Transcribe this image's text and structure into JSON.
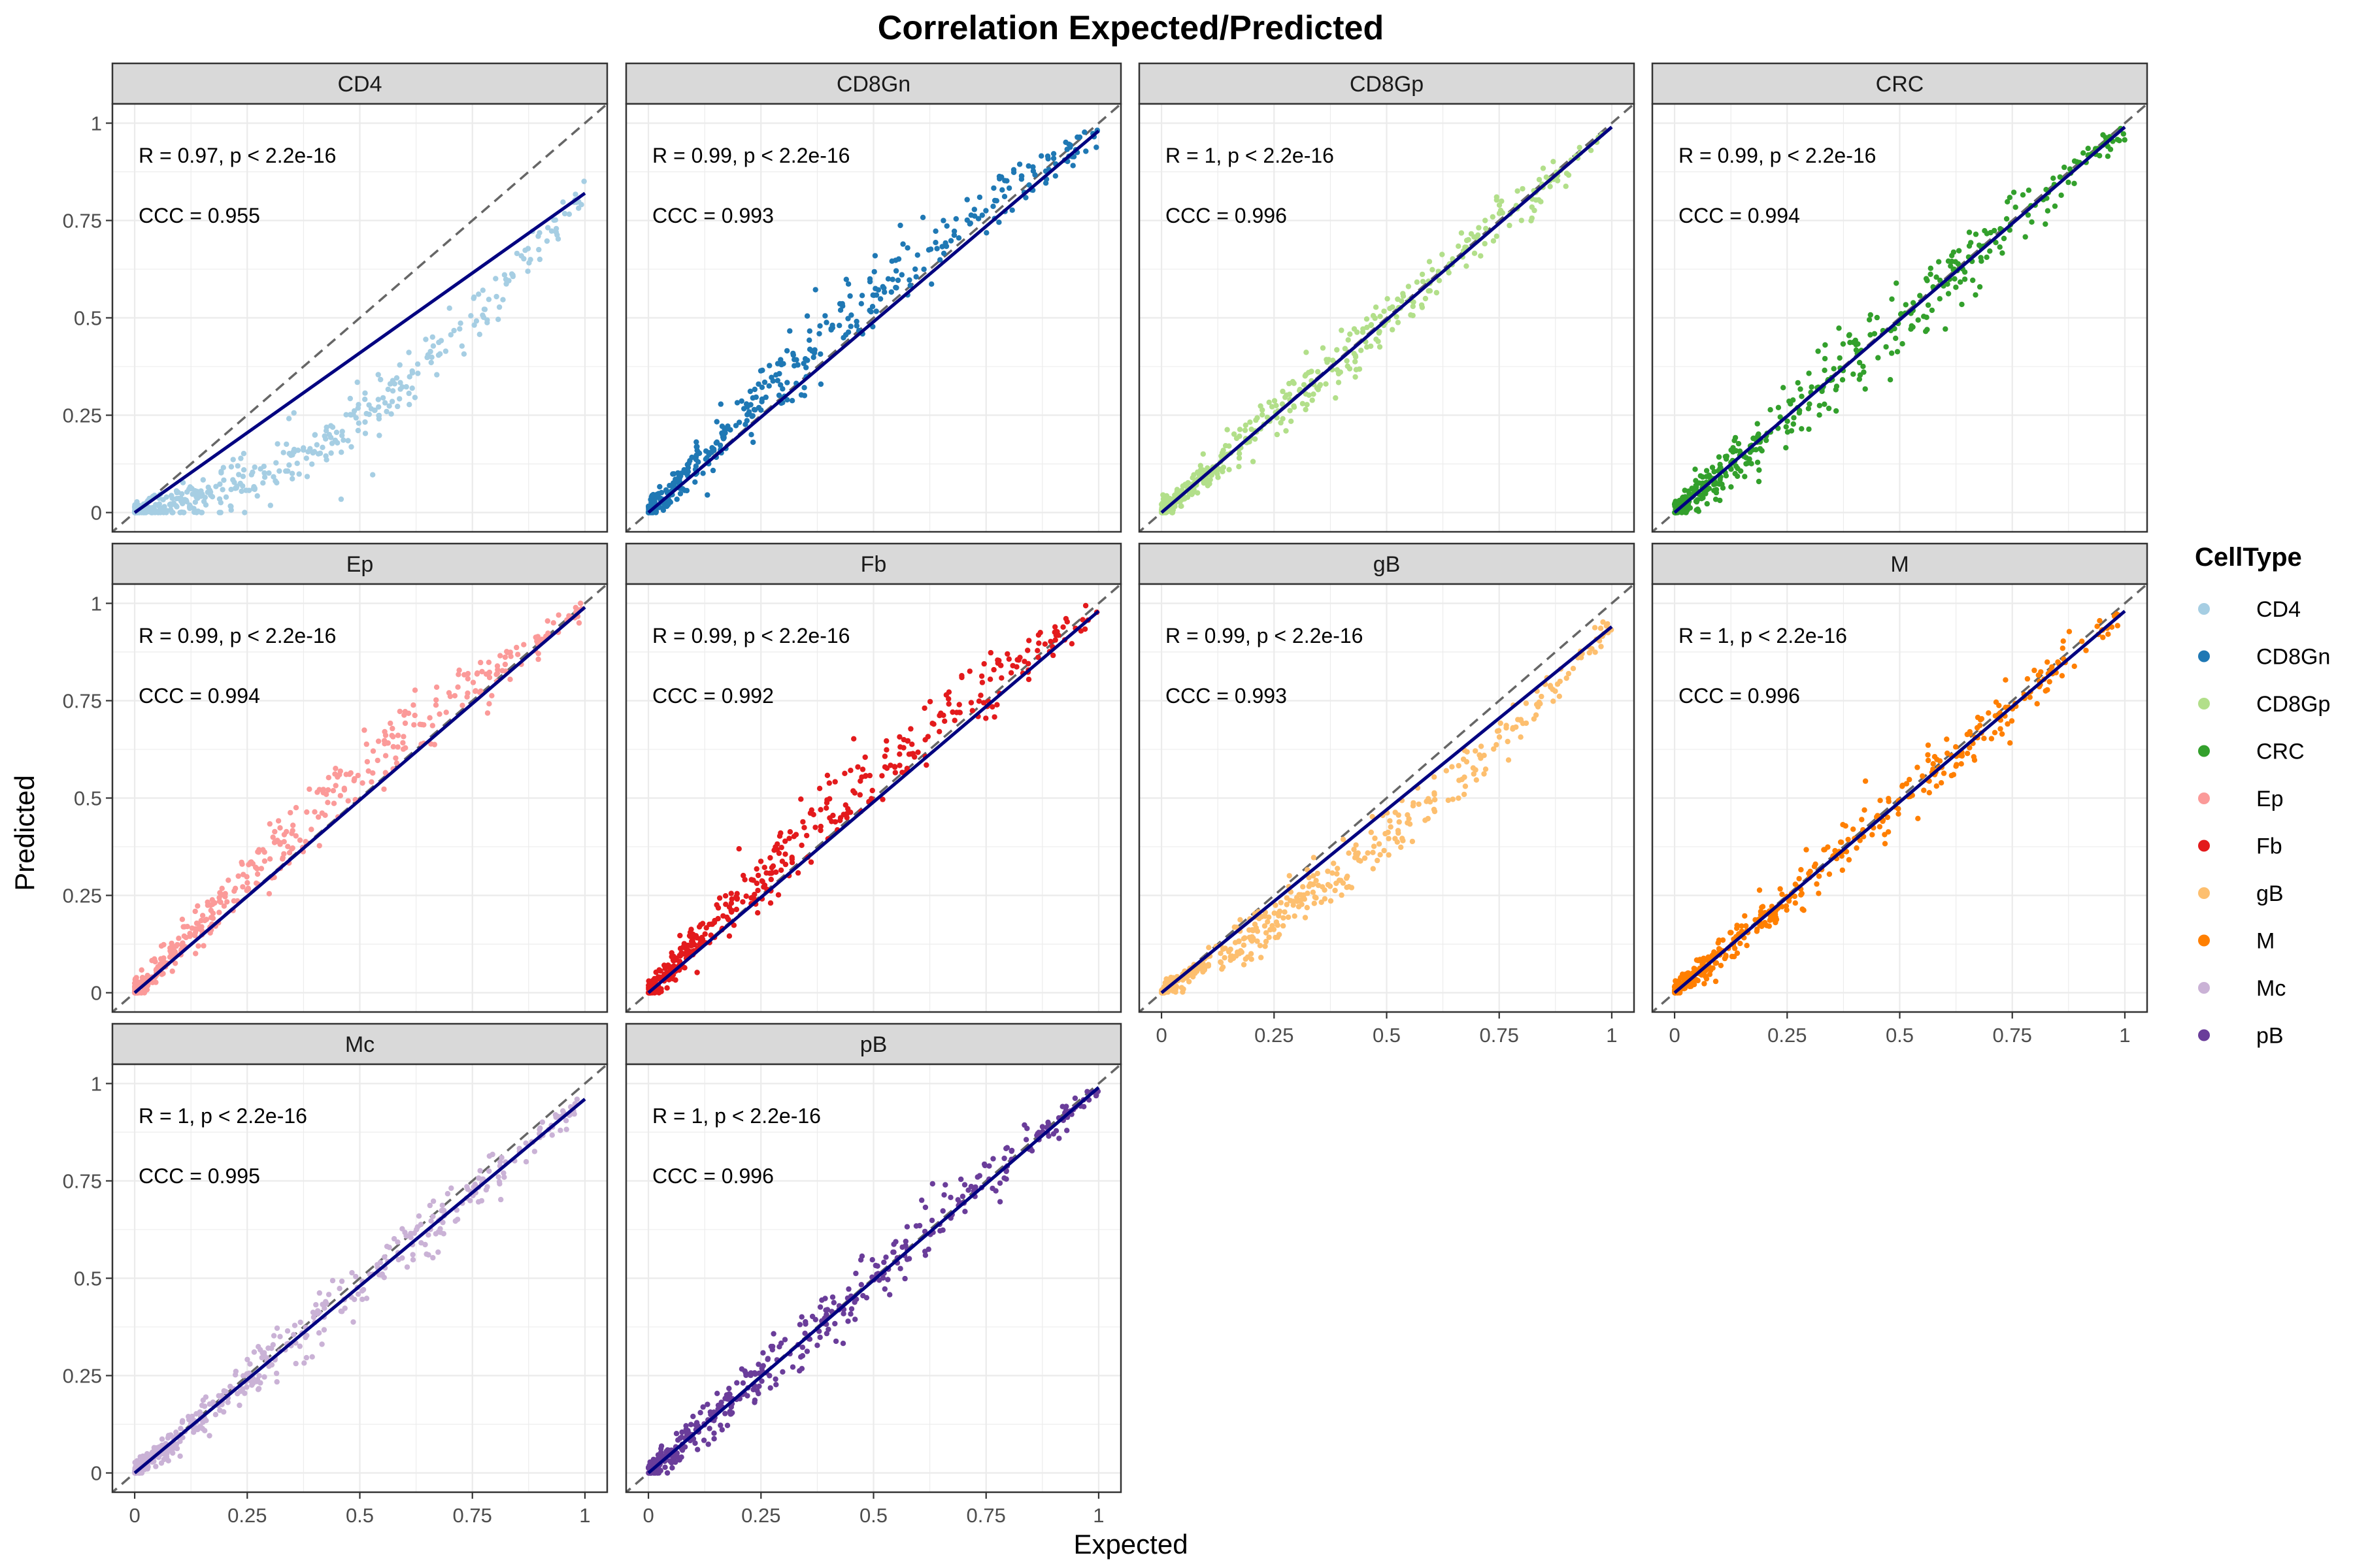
{
  "title": "Correlation Expected/Predicted",
  "xlabel": "Expected",
  "ylabel": "Predicted",
  "legend_title": "CellType",
  "chart_data": {
    "type": "scatter",
    "title": "Correlation Expected/Predicted",
    "xlabel": "Expected",
    "ylabel": "Predicted",
    "xlim": [
      0,
      1
    ],
    "ylim": [
      0,
      1
    ],
    "ticks": [
      0,
      0.25,
      0.5,
      0.75,
      1
    ],
    "tick_labels": [
      "0",
      "0.25",
      "0.5",
      "0.75",
      "1"
    ],
    "grid": true,
    "legend_position": "right",
    "reference_line": "identity (dashed)",
    "panels": [
      {
        "name": "CD4",
        "color": "#A6CEE3",
        "r": "0.97",
        "p": "< 2.2e-16",
        "ccc": "0.955",
        "r_label": "R = 0.97, p < 2.2e-16",
        "ccc_label": "CCC = 0.955",
        "fit": {
          "slope": 0.82,
          "intercept": 0.0
        },
        "shape": "bow-below",
        "spread": 0.035
      },
      {
        "name": "CD8Gn",
        "color": "#1F78B4",
        "r": "0.99",
        "p": "< 2.2e-16",
        "ccc": "0.993",
        "r_label": "R = 0.99, p < 2.2e-16",
        "ccc_label": "CCC = 0.993",
        "fit": {
          "slope": 0.98,
          "intercept": 0.0
        },
        "shape": "bow-above",
        "spread": 0.04
      },
      {
        "name": "CD8Gp",
        "color": "#B2DF8A",
        "r": "1",
        "p": "< 2.2e-16",
        "ccc": "0.996",
        "r_label": "R = 1, p < 2.2e-16",
        "ccc_label": "CCC = 0.996",
        "fit": {
          "slope": 0.99,
          "intercept": 0.0
        },
        "shape": "linear",
        "spread": 0.03
      },
      {
        "name": "CRC",
        "color": "#33A02C",
        "r": "0.99",
        "p": "< 2.2e-16",
        "ccc": "0.994",
        "r_label": "R = 0.99, p < 2.2e-16",
        "ccc_label": "CCC = 0.994",
        "fit": {
          "slope": 0.99,
          "intercept": 0.0
        },
        "shape": "linear",
        "spread": 0.04
      },
      {
        "name": "Ep",
        "color": "#FB9A99",
        "r": "0.99",
        "p": "< 2.2e-16",
        "ccc": "0.994",
        "r_label": "R = 0.99, p < 2.2e-16",
        "ccc_label": "CCC = 0.994",
        "fit": {
          "slope": 0.99,
          "intercept": 0.0
        },
        "shape": "bow-above",
        "spread": 0.035
      },
      {
        "name": "Fb",
        "color": "#E31A1C",
        "r": "0.99",
        "p": "< 2.2e-16",
        "ccc": "0.992",
        "r_label": "R = 0.99, p < 2.2e-16",
        "ccc_label": "CCC = 0.992",
        "fit": {
          "slope": 0.98,
          "intercept": 0.0
        },
        "shape": "bow-above",
        "spread": 0.04
      },
      {
        "name": "gB",
        "color": "#FDBF6F",
        "r": "0.99",
        "p": "< 2.2e-16",
        "ccc": "0.993",
        "r_label": "R = 0.99, p < 2.2e-16",
        "ccc_label": "CCC = 0.993",
        "fit": {
          "slope": 0.94,
          "intercept": 0.0
        },
        "shape": "bow-below",
        "spread": 0.03
      },
      {
        "name": "M",
        "color": "#FF7F00",
        "r": "1",
        "p": "< 2.2e-16",
        "ccc": "0.996",
        "r_label": "R = 1, p < 2.2e-16",
        "ccc_label": "CCC = 0.996",
        "fit": {
          "slope": 0.98,
          "intercept": 0.0
        },
        "shape": "linear",
        "spread": 0.03
      },
      {
        "name": "Mc",
        "color": "#CAB2D6",
        "r": "1",
        "p": "< 2.2e-16",
        "ccc": "0.995",
        "r_label": "R = 1, p < 2.2e-16",
        "ccc_label": "CCC = 0.995",
        "fit": {
          "slope": 0.96,
          "intercept": 0.0
        },
        "shape": "linear",
        "spread": 0.03
      },
      {
        "name": "pB",
        "color": "#6A3D9A",
        "r": "1",
        "p": "< 2.2e-16",
        "ccc": "0.996",
        "r_label": "R = 1, p < 2.2e-16",
        "ccc_label": "CCC = 0.996",
        "fit": {
          "slope": 0.99,
          "intercept": 0.0
        },
        "shape": "linear",
        "spread": 0.035
      }
    ],
    "legend": [
      {
        "label": "CD4",
        "color": "#A6CEE3"
      },
      {
        "label": "CD8Gn",
        "color": "#1F78B4"
      },
      {
        "label": "CD8Gp",
        "color": "#B2DF8A"
      },
      {
        "label": "CRC",
        "color": "#33A02C"
      },
      {
        "label": "Ep",
        "color": "#FB9A99"
      },
      {
        "label": "Fb",
        "color": "#E31A1C"
      },
      {
        "label": "gB",
        "color": "#FDBF6F"
      },
      {
        "label": "M",
        "color": "#FF7F00"
      },
      {
        "label": "Mc",
        "color": "#CAB2D6"
      },
      {
        "label": "pB",
        "color": "#6A3D9A"
      }
    ]
  }
}
